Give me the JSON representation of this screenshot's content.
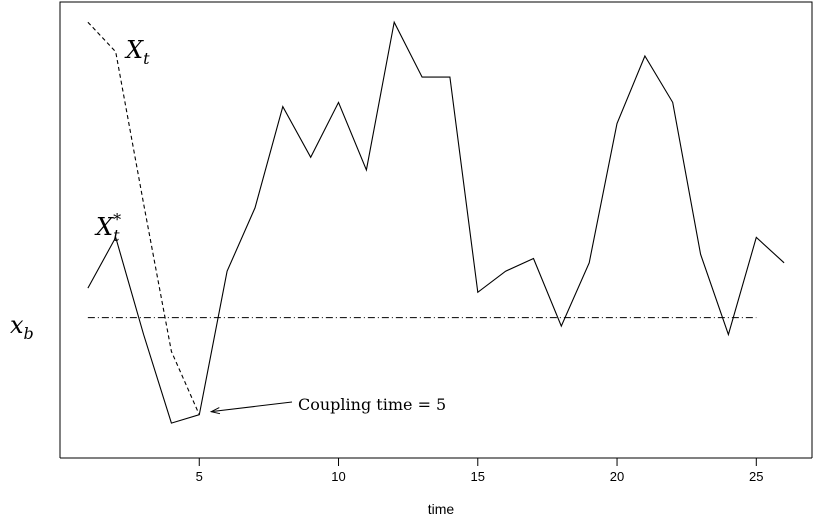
{
  "chart_data": {
    "type": "line",
    "xlabel": "time",
    "ylabel": "",
    "xlim": [
      0,
      27
    ],
    "ylim": [
      0,
      1
    ],
    "xticks": [
      5,
      10,
      15,
      20,
      25
    ],
    "series": [
      {
        "name": "X_t",
        "label_main": "X",
        "label_sub": "t",
        "label_sup": "",
        "style": "dashed",
        "x": [
          1,
          2,
          3,
          4,
          5
        ],
        "y": [
          0.99,
          0.92,
          0.56,
          0.21,
          0.06
        ]
      },
      {
        "name": "X_t^*",
        "label_main": "X",
        "label_sub": "t",
        "label_sup": "*",
        "style": "solid",
        "x": [
          1,
          2,
          3,
          4,
          5,
          6,
          7,
          8,
          9,
          10,
          11,
          12,
          13,
          14,
          15,
          16,
          17,
          18,
          19,
          20,
          21,
          22,
          23,
          24,
          25,
          26
        ],
        "y": [
          0.36,
          0.48,
          0.25,
          0.04,
          0.06,
          0.4,
          0.55,
          0.79,
          0.67,
          0.8,
          0.64,
          0.99,
          0.86,
          0.86,
          0.35,
          0.4,
          0.43,
          0.27,
          0.42,
          0.75,
          0.91,
          0.8,
          0.44,
          0.25,
          0.48,
          0.42
        ]
      }
    ],
    "reference_line": {
      "label": "x_b",
      "label_main": "x",
      "label_sub": "b",
      "y": 0.29,
      "x_start": 1,
      "x_end": 25,
      "style": "dashdot"
    },
    "annotation": {
      "text": "Coupling time = 5",
      "target_x": 5,
      "target_y": 0.06
    }
  }
}
